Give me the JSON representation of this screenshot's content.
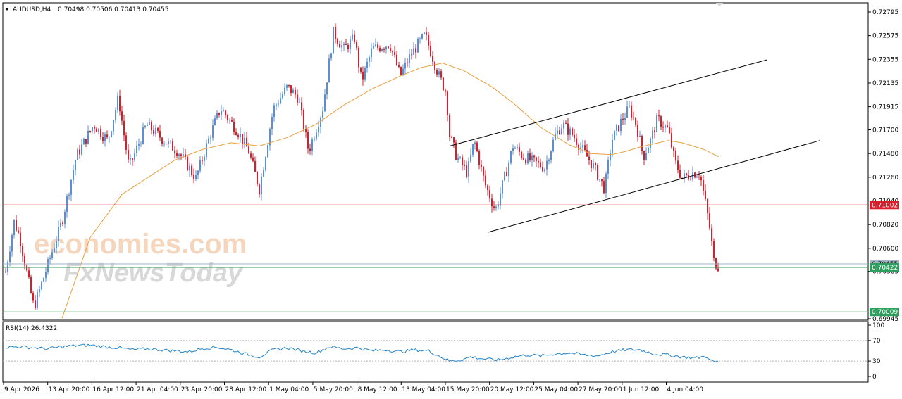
{
  "header": {
    "dropdown_icon": "triangle-down-icon",
    "symbol": "AUDUSD,H4",
    "ohlc": "0.70498 0.70506 0.70413 0.70455"
  },
  "watermark": {
    "line1": "economies.com",
    "line2": "FxNewsToday"
  },
  "colors": {
    "bull": "#5b8fd4",
    "bear": "#d81e2c",
    "ma": "#e8a040",
    "resistance": "#d81e2c",
    "support": "#2e9e5e",
    "rsi": "#1f82c8",
    "channel": "#000000"
  },
  "chart_data": [
    {
      "type": "candlestick",
      "title": "AUDUSD,H4",
      "ylim": [
        0.69945,
        0.7288
      ],
      "y_ticks": [
        "0.72795",
        "0.72575",
        "0.72355",
        "0.72135",
        "0.71915",
        "0.71700",
        "0.71480",
        "0.71260",
        "0.71040",
        "0.70820",
        "0.70600",
        "0.70385",
        "0.69945"
      ],
      "x_ticks": [
        "9 Apr 2026",
        "13 Apr 20:00",
        "16 Apr 12:00",
        "21 Apr 04:00",
        "23 Apr 20:00",
        "28 Apr 12:00",
        "1 May 04:00",
        "5 May 20:00",
        "8 May 12:00",
        "13 May 04:00",
        "15 May 20:00",
        "20 May 12:00",
        "25 May 04:00",
        "27 May 20:00",
        "1 Jun 12:00",
        "4 Jun 04:00"
      ],
      "close_path": [
        [
          0,
          0.7038
        ],
        [
          12,
          0.7085
        ],
        [
          20,
          0.707
        ],
        [
          40,
          0.7005
        ],
        [
          60,
          0.7045
        ],
        [
          80,
          0.7085
        ],
        [
          100,
          0.7145
        ],
        [
          125,
          0.7175
        ],
        [
          145,
          0.716
        ],
        [
          160,
          0.72
        ],
        [
          175,
          0.7135
        ],
        [
          200,
          0.7175
        ],
        [
          225,
          0.716
        ],
        [
          245,
          0.715
        ],
        [
          270,
          0.7125
        ],
        [
          290,
          0.7165
        ],
        [
          305,
          0.719
        ],
        [
          330,
          0.7168
        ],
        [
          345,
          0.715
        ],
        [
          360,
          0.7115
        ],
        [
          380,
          0.719
        ],
        [
          400,
          0.721
        ],
        [
          415,
          0.72
        ],
        [
          430,
          0.715
        ],
        [
          450,
          0.719
        ],
        [
          465,
          0.726
        ],
        [
          480,
          0.7245
        ],
        [
          495,
          0.7255
        ],
        [
          505,
          0.7215
        ],
        [
          520,
          0.7245
        ],
        [
          545,
          0.725
        ],
        [
          560,
          0.722
        ],
        [
          575,
          0.724
        ],
        [
          595,
          0.7258
        ],
        [
          615,
          0.722
        ],
        [
          625,
          0.7205
        ],
        [
          630,
          0.7165
        ],
        [
          640,
          0.7145
        ],
        [
          655,
          0.713
        ],
        [
          665,
          0.716
        ],
        [
          680,
          0.712
        ],
        [
          695,
          0.7095
        ],
        [
          710,
          0.713
        ],
        [
          720,
          0.7155
        ],
        [
          735,
          0.7145
        ],
        [
          750,
          0.714
        ],
        [
          765,
          0.7135
        ],
        [
          780,
          0.7165
        ],
        [
          790,
          0.7175
        ],
        [
          805,
          0.7165
        ],
        [
          820,
          0.715
        ],
        [
          835,
          0.7135
        ],
        [
          850,
          0.7115
        ],
        [
          860,
          0.716
        ],
        [
          875,
          0.718
        ],
        [
          885,
          0.719
        ],
        [
          895,
          0.7175
        ],
        [
          905,
          0.7145
        ],
        [
          915,
          0.716
        ],
        [
          925,
          0.718
        ],
        [
          940,
          0.717
        ],
        [
          950,
          0.714
        ],
        [
          960,
          0.7125
        ],
        [
          975,
          0.713
        ],
        [
          985,
          0.713
        ],
        [
          995,
          0.7095
        ],
        [
          1000,
          0.7075
        ],
        [
          1005,
          0.7048
        ],
        [
          1012,
          0.7043
        ]
      ],
      "ma_path": [
        [
          80,
          0.6995
        ],
        [
          120,
          0.707
        ],
        [
          165,
          0.711
        ],
        [
          200,
          0.7125
        ],
        [
          240,
          0.7142
        ],
        [
          280,
          0.7152
        ],
        [
          320,
          0.7158
        ],
        [
          360,
          0.7155
        ],
        [
          400,
          0.7163
        ],
        [
          440,
          0.7175
        ],
        [
          480,
          0.7193
        ],
        [
          520,
          0.7208
        ],
        [
          560,
          0.722
        ],
        [
          590,
          0.7228
        ],
        [
          620,
          0.7232
        ],
        [
          650,
          0.7225
        ],
        [
          690,
          0.721
        ],
        [
          720,
          0.7195
        ],
        [
          760,
          0.7172
        ],
        [
          800,
          0.7156
        ],
        [
          830,
          0.7148
        ],
        [
          860,
          0.7147
        ],
        [
          880,
          0.715
        ],
        [
          900,
          0.7154
        ],
        [
          920,
          0.7157
        ],
        [
          940,
          0.716
        ],
        [
          960,
          0.7158
        ],
        [
          990,
          0.7152
        ],
        [
          1012,
          0.7145
        ]
      ],
      "levels": [
        {
          "name": "resistance",
          "value": 0.71002,
          "label": "0.71002"
        },
        {
          "name": "current-price",
          "value": 0.70455,
          "label": "0.70455"
        },
        {
          "name": "support-1",
          "value": 0.70422,
          "label": "0.70422"
        },
        {
          "name": "support-2",
          "value": 0.70009,
          "label": "0.70009"
        }
      ],
      "channel": {
        "upper": [
          [
            630,
            0.7155
          ],
          [
            1080,
            0.7235
          ]
        ],
        "lower": [
          [
            685,
            0.7075
          ],
          [
            1155,
            0.716
          ]
        ]
      }
    },
    {
      "type": "line",
      "title": "RSI(14) 26.4322",
      "ylim": [
        0,
        100
      ],
      "y_ticks": [
        "100",
        "70",
        "30",
        "0"
      ],
      "levels": [
        70,
        30
      ],
      "series": [
        {
          "values": [
            [
              0,
              57
            ],
            [
              20,
              58
            ],
            [
              40,
              56
            ],
            [
              60,
              54
            ],
            [
              80,
              58
            ],
            [
              100,
              60
            ],
            [
              120,
              61
            ],
            [
              140,
              58
            ],
            [
              160,
              56
            ],
            [
              180,
              52
            ],
            [
              200,
              54
            ],
            [
              220,
              52
            ],
            [
              240,
              50
            ],
            [
              260,
              48
            ],
            [
              280,
              55
            ],
            [
              300,
              57
            ],
            [
              320,
              52
            ],
            [
              340,
              44
            ],
            [
              360,
              38
            ],
            [
              380,
              52
            ],
            [
              400,
              56
            ],
            [
              420,
              50
            ],
            [
              440,
              46
            ],
            [
              460,
              58
            ],
            [
              480,
              54
            ],
            [
              500,
              56
            ],
            [
              520,
              50
            ],
            [
              540,
              52
            ],
            [
              560,
              48
            ],
            [
              580,
              52
            ],
            [
              600,
              50
            ],
            [
              615,
              40
            ],
            [
              630,
              30
            ],
            [
              645,
              32
            ],
            [
              660,
              38
            ],
            [
              680,
              34
            ],
            [
              700,
              32
            ],
            [
              720,
              38
            ],
            [
              740,
              42
            ],
            [
              760,
              40
            ],
            [
              780,
              44
            ],
            [
              800,
              46
            ],
            [
              820,
              42
            ],
            [
              840,
              40
            ],
            [
              860,
              48
            ],
            [
              880,
              52
            ],
            [
              900,
              52
            ],
            [
              920,
              44
            ],
            [
              940,
              42
            ],
            [
              960,
              38
            ],
            [
              980,
              36
            ],
            [
              995,
              40
            ],
            [
              1000,
              30
            ],
            [
              1012,
              28
            ]
          ]
        }
      ]
    }
  ]
}
